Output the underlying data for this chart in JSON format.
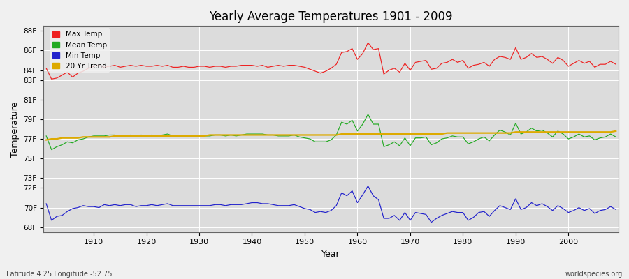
{
  "title": "Yearly Average Temperatures 1901 - 2009",
  "xlabel": "Year",
  "ylabel": "Temperature",
  "x_start": 1901,
  "x_end": 2009,
  "ylim": [
    67.5,
    88.5
  ],
  "xlim": [
    1900.5,
    2009.5
  ],
  "fig_bg_color": "#f0f0f0",
  "plot_bg_color": "#dcdcdc",
  "grid_color": "#ffffff",
  "max_temp_color": "#ee2222",
  "mean_temp_color": "#22aa22",
  "min_temp_color": "#2222cc",
  "trend_color": "#ddaa00",
  "legend_labels": [
    "Max Temp",
    "Mean Temp",
    "Min Temp",
    "20 Yr Trend"
  ],
  "footer_left": "Latitude 4.25 Longitude -52.75",
  "footer_right": "worldspecies.org",
  "ytick_positions": [
    68,
    70,
    72,
    73,
    75,
    77,
    79,
    81,
    83,
    84,
    86,
    88
  ],
  "ytick_labels": [
    "68F",
    "70F",
    "72F",
    "73F",
    "75F",
    "77F",
    "79F",
    "81F",
    "83F",
    "84F",
    "86F",
    "88F"
  ],
  "xtick_positions": [
    1910,
    1920,
    1930,
    1940,
    1950,
    1960,
    1970,
    1980,
    1990,
    2000
  ],
  "max_temp": [
    84.2,
    83.1,
    83.2,
    83.5,
    83.8,
    83.3,
    83.7,
    83.9,
    84.2,
    84.4,
    84.5,
    84.3,
    84.4,
    84.5,
    84.3,
    84.4,
    84.5,
    84.4,
    84.5,
    84.4,
    84.4,
    84.5,
    84.4,
    84.5,
    84.3,
    84.3,
    84.4,
    84.3,
    84.3,
    84.4,
    84.4,
    84.3,
    84.4,
    84.4,
    84.3,
    84.4,
    84.4,
    84.5,
    84.5,
    84.5,
    84.4,
    84.5,
    84.3,
    84.4,
    84.5,
    84.4,
    84.5,
    84.5,
    84.4,
    84.3,
    84.1,
    83.9,
    83.7,
    83.9,
    84.2,
    84.6,
    85.8,
    85.9,
    86.2,
    85.1,
    85.7,
    86.8,
    86.1,
    86.2,
    83.6,
    84.0,
    84.2,
    83.8,
    84.7,
    84.0,
    84.8,
    84.9,
    85.0,
    84.1,
    84.2,
    84.7,
    84.8,
    85.1,
    84.8,
    85.0,
    84.2,
    84.5,
    84.6,
    84.8,
    84.4,
    85.1,
    85.4,
    85.3,
    85.1,
    86.3,
    85.1,
    85.3,
    85.7,
    85.3,
    85.4,
    85.1,
    84.7,
    85.3,
    85.0,
    84.4,
    84.7,
    85.0,
    84.7,
    84.9,
    84.3,
    84.6,
    84.6,
    84.9,
    84.6
  ],
  "mean_temp": [
    77.3,
    75.9,
    76.2,
    76.4,
    76.7,
    76.6,
    76.9,
    77.0,
    77.2,
    77.3,
    77.3,
    77.3,
    77.4,
    77.4,
    77.3,
    77.3,
    77.4,
    77.3,
    77.4,
    77.3,
    77.4,
    77.3,
    77.4,
    77.5,
    77.3,
    77.3,
    77.3,
    77.3,
    77.3,
    77.3,
    77.3,
    77.3,
    77.4,
    77.4,
    77.3,
    77.4,
    77.3,
    77.4,
    77.5,
    77.5,
    77.5,
    77.5,
    77.4,
    77.4,
    77.3,
    77.3,
    77.3,
    77.4,
    77.2,
    77.1,
    77.0,
    76.7,
    76.7,
    76.7,
    76.9,
    77.4,
    78.7,
    78.5,
    78.9,
    77.8,
    78.5,
    79.5,
    78.5,
    78.5,
    76.2,
    76.4,
    76.7,
    76.3,
    77.1,
    76.3,
    77.1,
    77.1,
    77.2,
    76.4,
    76.6,
    77.0,
    77.1,
    77.3,
    77.2,
    77.2,
    76.5,
    76.7,
    77.0,
    77.2,
    76.8,
    77.4,
    77.9,
    77.7,
    77.4,
    78.6,
    77.5,
    77.7,
    78.1,
    77.8,
    77.9,
    77.6,
    77.2,
    77.8,
    77.5,
    77.0,
    77.2,
    77.5,
    77.2,
    77.3,
    76.9,
    77.1,
    77.2,
    77.5,
    77.2
  ],
  "min_temp": [
    70.4,
    68.7,
    69.1,
    69.2,
    69.6,
    69.9,
    70.0,
    70.2,
    70.1,
    70.1,
    70.0,
    70.3,
    70.2,
    70.3,
    70.2,
    70.3,
    70.3,
    70.1,
    70.2,
    70.2,
    70.3,
    70.2,
    70.3,
    70.4,
    70.2,
    70.2,
    70.2,
    70.2,
    70.2,
    70.2,
    70.2,
    70.2,
    70.3,
    70.3,
    70.2,
    70.3,
    70.3,
    70.3,
    70.4,
    70.5,
    70.5,
    70.4,
    70.4,
    70.3,
    70.2,
    70.2,
    70.2,
    70.3,
    70.1,
    69.9,
    69.8,
    69.5,
    69.6,
    69.5,
    69.7,
    70.2,
    71.5,
    71.2,
    71.7,
    70.5,
    71.3,
    72.2,
    71.2,
    70.8,
    68.9,
    68.9,
    69.2,
    68.7,
    69.5,
    68.7,
    69.5,
    69.4,
    69.3,
    68.5,
    68.9,
    69.2,
    69.4,
    69.6,
    69.5,
    69.5,
    68.7,
    69.0,
    69.5,
    69.6,
    69.1,
    69.7,
    70.2,
    70.0,
    69.8,
    70.9,
    69.8,
    70.0,
    70.5,
    70.2,
    70.4,
    70.1,
    69.7,
    70.2,
    69.9,
    69.5,
    69.7,
    70.0,
    69.7,
    69.9,
    69.4,
    69.7,
    69.8,
    70.1,
    69.8
  ],
  "trend": [
    76.9,
    77.0,
    77.0,
    77.1,
    77.1,
    77.1,
    77.1,
    77.2,
    77.2,
    77.2,
    77.2,
    77.2,
    77.2,
    77.3,
    77.3,
    77.3,
    77.3,
    77.3,
    77.3,
    77.3,
    77.3,
    77.3,
    77.3,
    77.3,
    77.3,
    77.3,
    77.3,
    77.3,
    77.3,
    77.3,
    77.3,
    77.4,
    77.4,
    77.4,
    77.4,
    77.4,
    77.4,
    77.4,
    77.4,
    77.4,
    77.4,
    77.4,
    77.4,
    77.4,
    77.4,
    77.4,
    77.4,
    77.4,
    77.4,
    77.4,
    77.4,
    77.4,
    77.4,
    77.4,
    77.4,
    77.4,
    77.5,
    77.5,
    77.5,
    77.5,
    77.5,
    77.5,
    77.5,
    77.5,
    77.5,
    77.5,
    77.5,
    77.5,
    77.5,
    77.5,
    77.5,
    77.5,
    77.5,
    77.5,
    77.5,
    77.5,
    77.6,
    77.6,
    77.6,
    77.6,
    77.6,
    77.6,
    77.6,
    77.6,
    77.6,
    77.6,
    77.6,
    77.6,
    77.6,
    77.7,
    77.7,
    77.7,
    77.7,
    77.7,
    77.7,
    77.7,
    77.7,
    77.7,
    77.7,
    77.7,
    77.7,
    77.7,
    77.7,
    77.7,
    77.7,
    77.7,
    77.7,
    77.7,
    77.8
  ]
}
